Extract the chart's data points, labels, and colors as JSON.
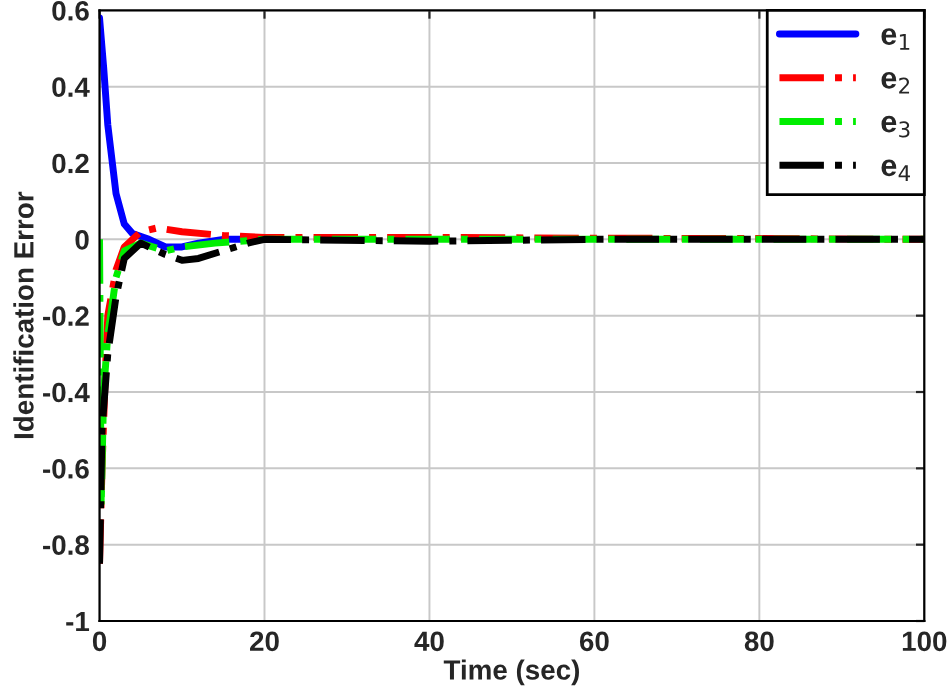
{
  "chart_data": {
    "type": "line",
    "xlabel": "Time (sec)",
    "ylabel": "Identification Error",
    "xlim": [
      0,
      100
    ],
    "ylim": [
      -1,
      0.6
    ],
    "xticks": [
      0,
      20,
      40,
      60,
      80,
      100
    ],
    "yticks": [
      -1,
      -0.8,
      -0.6,
      -0.4,
      -0.2,
      0,
      0.2,
      0.4,
      0.6
    ],
    "grid": true,
    "legend": "top right",
    "marker": "none",
    "series": [
      {
        "name": "e$_{1}$",
        "color": "#0000ff",
        "line_style": "solid",
        "x": [
          0,
          0.5,
          1,
          2,
          3,
          4,
          6,
          8,
          10,
          12,
          15,
          20
        ],
        "values": [
          0.58,
          0.45,
          0.3,
          0.12,
          0.04,
          0.015,
          0.0,
          -0.02,
          -0.02,
          -0.01,
          0,
          0
        ]
      },
      {
        "name": "e$_{2}$",
        "color": "#ff0000",
        "line_style": "dashdot",
        "x": [
          0,
          0.3,
          0.7,
          1,
          2,
          3,
          5,
          7,
          10,
          15,
          20,
          40,
          60,
          80,
          100
        ],
        "values": [
          -0.85,
          -0.6,
          -0.35,
          -0.2,
          -0.08,
          -0.02,
          0.02,
          0.03,
          0.02,
          0.01,
          0.005,
          0.005,
          0.003,
          0.002,
          0
        ]
      },
      {
        "name": "e$_{3}$",
        "color": "#00ee00",
        "line_style": "dashdot",
        "x": [
          0,
          0.2,
          0.5,
          1,
          2,
          3,
          5,
          8,
          10,
          14,
          20,
          100
        ],
        "values": [
          0,
          -0.7,
          -0.4,
          -0.25,
          -0.1,
          -0.03,
          -0.01,
          -0.03,
          -0.02,
          -0.01,
          0,
          0
        ]
      },
      {
        "name": "e$_{4}$",
        "color": "#000000",
        "line_style": "dashdot",
        "x": [
          0,
          0.3,
          1,
          2,
          3,
          5,
          8,
          10,
          12,
          15,
          18,
          20,
          40,
          60,
          100
        ],
        "values": [
          -0.85,
          -0.5,
          -0.3,
          -0.15,
          -0.05,
          -0.01,
          -0.04,
          -0.055,
          -0.05,
          -0.03,
          -0.01,
          0,
          -0.005,
          0,
          0
        ]
      }
    ]
  }
}
